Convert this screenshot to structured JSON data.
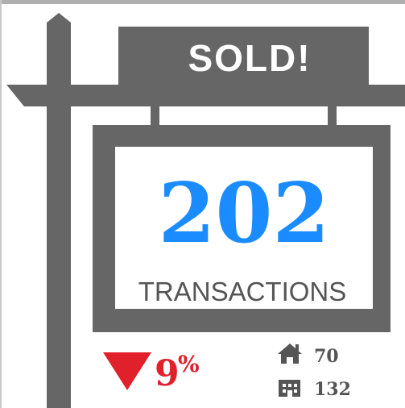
{
  "sign": {
    "header": "SOLD!",
    "count": 202,
    "label": "TRANSACTIONS"
  },
  "change": {
    "value": 9,
    "symbol": "%"
  },
  "breakdown": [
    {
      "icon": "house",
      "count": 70
    },
    {
      "icon": "building",
      "count": 132
    }
  ]
}
